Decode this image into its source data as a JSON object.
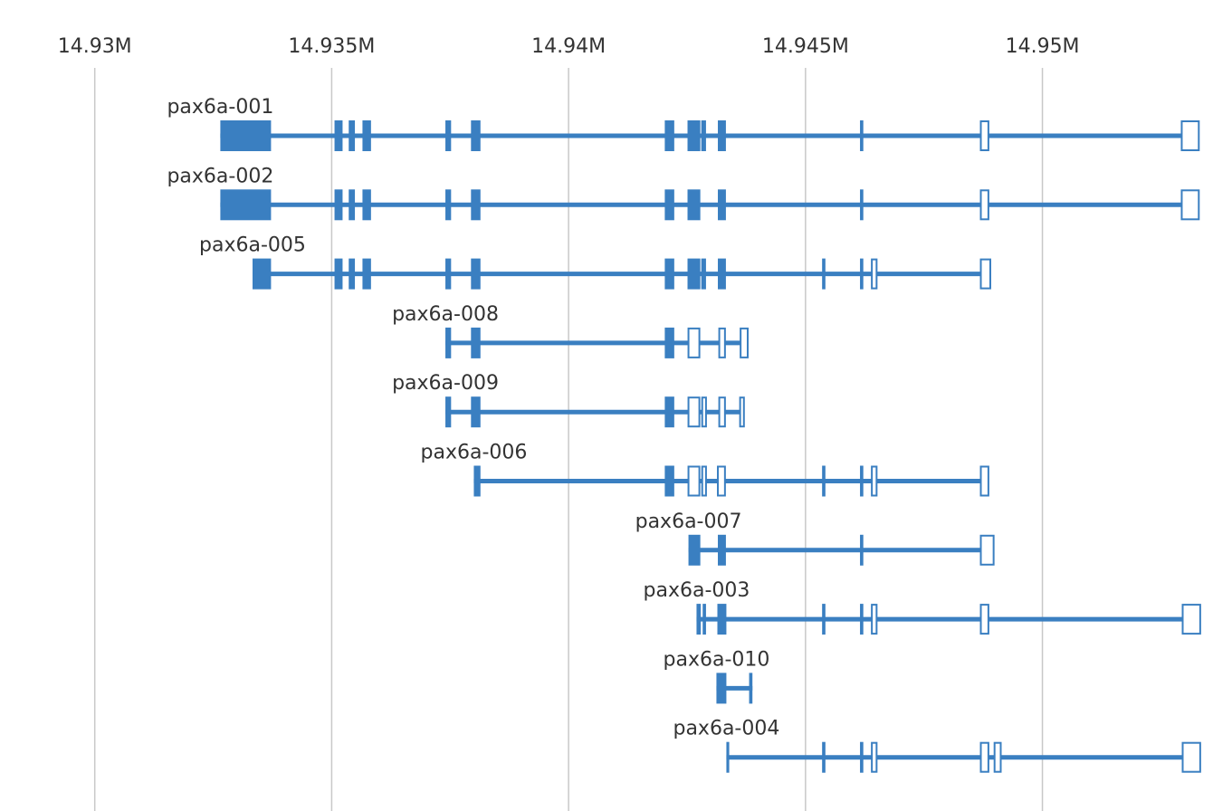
{
  "chart_data": {
    "type": "gene-track",
    "title": "",
    "xlabel": "",
    "ylabel": "",
    "color": "#3a7fc1",
    "x_range": [
      14928000,
      14953600
    ],
    "grid": true,
    "ticks": [
      {
        "value": 14930000,
        "label": "14.93M"
      },
      {
        "value": 14935000,
        "label": "14.935M"
      },
      {
        "value": 14940000,
        "label": "14.94M"
      },
      {
        "value": 14945000,
        "label": "14.945M"
      },
      {
        "value": 14950000,
        "label": "14.95M"
      }
    ],
    "transcripts": [
      {
        "name": "pax6a-001",
        "start": 14932650,
        "end": 14953300,
        "exons": [
          {
            "start": 14932650,
            "end": 14933720,
            "coding": true
          },
          {
            "start": 14935060,
            "end": 14935230,
            "coding": true
          },
          {
            "start": 14935360,
            "end": 14935490,
            "coding": true
          },
          {
            "start": 14935650,
            "end": 14935830,
            "coding": true
          },
          {
            "start": 14937400,
            "end": 14937520,
            "coding": true
          },
          {
            "start": 14937940,
            "end": 14938140,
            "coding": true
          },
          {
            "start": 14942030,
            "end": 14942230,
            "coding": true
          },
          {
            "start": 14942510,
            "end": 14942780,
            "coding": true
          },
          {
            "start": 14942800,
            "end": 14942900,
            "coding": true
          },
          {
            "start": 14943150,
            "end": 14943320,
            "coding": true
          },
          {
            "start": 14946150,
            "end": 14946220,
            "coding": true
          },
          {
            "start": 14948700,
            "end": 14948860,
            "coding": false
          },
          {
            "start": 14952940,
            "end": 14953300,
            "coding": false
          }
        ]
      },
      {
        "name": "pax6a-002",
        "start": 14932650,
        "end": 14953300,
        "exons": [
          {
            "start": 14932650,
            "end": 14933720,
            "coding": true
          },
          {
            "start": 14935060,
            "end": 14935230,
            "coding": true
          },
          {
            "start": 14935360,
            "end": 14935490,
            "coding": true
          },
          {
            "start": 14935650,
            "end": 14935830,
            "coding": true
          },
          {
            "start": 14937400,
            "end": 14937520,
            "coding": true
          },
          {
            "start": 14937940,
            "end": 14938140,
            "coding": true
          },
          {
            "start": 14942030,
            "end": 14942230,
            "coding": true
          },
          {
            "start": 14942510,
            "end": 14942780,
            "coding": true
          },
          {
            "start": 14943150,
            "end": 14943320,
            "coding": true
          },
          {
            "start": 14946150,
            "end": 14946220,
            "coding": true
          },
          {
            "start": 14948700,
            "end": 14948860,
            "coding": false
          },
          {
            "start": 14952940,
            "end": 14953300,
            "coding": false
          }
        ]
      },
      {
        "name": "pax6a-005",
        "start": 14933330,
        "end": 14948900,
        "exons": [
          {
            "start": 14933330,
            "end": 14933720,
            "coding": true
          },
          {
            "start": 14935060,
            "end": 14935230,
            "coding": true
          },
          {
            "start": 14935360,
            "end": 14935490,
            "coding": true
          },
          {
            "start": 14935650,
            "end": 14935830,
            "coding": true
          },
          {
            "start": 14937400,
            "end": 14937520,
            "coding": true
          },
          {
            "start": 14937940,
            "end": 14938140,
            "coding": true
          },
          {
            "start": 14942030,
            "end": 14942230,
            "coding": true
          },
          {
            "start": 14942510,
            "end": 14942780,
            "coding": true
          },
          {
            "start": 14942800,
            "end": 14942900,
            "coding": true
          },
          {
            "start": 14943150,
            "end": 14943320,
            "coding": true
          },
          {
            "start": 14945350,
            "end": 14945420,
            "coding": true
          },
          {
            "start": 14946150,
            "end": 14946220,
            "coding": true
          },
          {
            "start": 14946400,
            "end": 14946500,
            "coding": false
          },
          {
            "start": 14948700,
            "end": 14948900,
            "coding": false
          }
        ]
      },
      {
        "name": "pax6a-008",
        "start": 14937400,
        "end": 14943780,
        "exons": [
          {
            "start": 14937400,
            "end": 14937520,
            "coding": true
          },
          {
            "start": 14937940,
            "end": 14938140,
            "coding": true
          },
          {
            "start": 14942030,
            "end": 14942230,
            "coding": true
          },
          {
            "start": 14942530,
            "end": 14942760,
            "coding": false
          },
          {
            "start": 14943180,
            "end": 14943300,
            "coding": false
          },
          {
            "start": 14943630,
            "end": 14943780,
            "coding": false
          }
        ]
      },
      {
        "name": "pax6a-009",
        "start": 14937400,
        "end": 14943700,
        "exons": [
          {
            "start": 14937400,
            "end": 14937520,
            "coding": true
          },
          {
            "start": 14937940,
            "end": 14938140,
            "coding": true
          },
          {
            "start": 14942030,
            "end": 14942230,
            "coding": true
          },
          {
            "start": 14942530,
            "end": 14942760,
            "coding": false
          },
          {
            "start": 14942820,
            "end": 14942900,
            "coding": false
          },
          {
            "start": 14943180,
            "end": 14943300,
            "coding": false
          },
          {
            "start": 14943620,
            "end": 14943700,
            "coding": false
          }
        ]
      },
      {
        "name": "pax6a-006",
        "start": 14938000,
        "end": 14948860,
        "exons": [
          {
            "start": 14938000,
            "end": 14938140,
            "coding": true
          },
          {
            "start": 14942030,
            "end": 14942230,
            "coding": true
          },
          {
            "start": 14942530,
            "end": 14942760,
            "coding": false
          },
          {
            "start": 14942820,
            "end": 14942900,
            "coding": false
          },
          {
            "start": 14943150,
            "end": 14943300,
            "coding": false
          },
          {
            "start": 14945350,
            "end": 14945420,
            "coding": true
          },
          {
            "start": 14946150,
            "end": 14946220,
            "coding": true
          },
          {
            "start": 14946400,
            "end": 14946500,
            "coding": false
          },
          {
            "start": 14948700,
            "end": 14948860,
            "coding": false
          }
        ]
      },
      {
        "name": "pax6a-007",
        "start": 14942530,
        "end": 14948970,
        "exons": [
          {
            "start": 14942530,
            "end": 14942780,
            "coding": true
          },
          {
            "start": 14943150,
            "end": 14943320,
            "coding": true
          },
          {
            "start": 14946150,
            "end": 14946220,
            "coding": true
          },
          {
            "start": 14948700,
            "end": 14948970,
            "coding": false
          }
        ]
      },
      {
        "name": "pax6a-003",
        "start": 14942700,
        "end": 14953330,
        "exons": [
          {
            "start": 14942700,
            "end": 14942790,
            "coding": true
          },
          {
            "start": 14942830,
            "end": 14942900,
            "coding": true
          },
          {
            "start": 14943140,
            "end": 14943330,
            "coding": true
          },
          {
            "start": 14945350,
            "end": 14945420,
            "coding": true
          },
          {
            "start": 14946150,
            "end": 14946220,
            "coding": true
          },
          {
            "start": 14946400,
            "end": 14946500,
            "coding": false
          },
          {
            "start": 14948700,
            "end": 14948860,
            "coding": false
          },
          {
            "start": 14952960,
            "end": 14953330,
            "coding": false
          }
        ]
      },
      {
        "name": "pax6a-010",
        "start": 14943120,
        "end": 14943880,
        "exons": [
          {
            "start": 14943120,
            "end": 14943330,
            "coding": true
          },
          {
            "start": 14943810,
            "end": 14943880,
            "coding": true
          }
        ]
      },
      {
        "name": "pax6a-004",
        "start": 14943330,
        "end": 14953330,
        "exons": [
          {
            "start": 14943330,
            "end": 14943390,
            "coding": true
          },
          {
            "start": 14945350,
            "end": 14945420,
            "coding": true
          },
          {
            "start": 14946150,
            "end": 14946220,
            "coding": true
          },
          {
            "start": 14946400,
            "end": 14946500,
            "coding": false
          },
          {
            "start": 14948700,
            "end": 14948860,
            "coding": false
          },
          {
            "start": 14948990,
            "end": 14949120,
            "coding": false
          },
          {
            "start": 14952960,
            "end": 14953330,
            "coding": false
          }
        ]
      }
    ]
  }
}
